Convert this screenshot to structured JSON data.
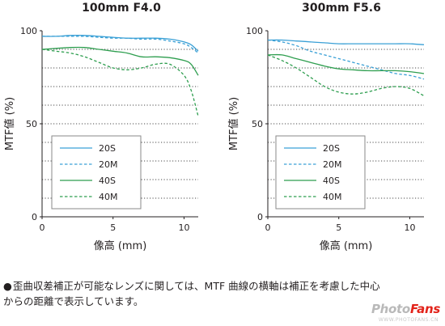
{
  "chart_data": [
    {
      "type": "line",
      "title": "100mm F4.0",
      "xlabel": "像高 (mm)",
      "ylabel": "MTF値 (%)",
      "xlim": [
        0,
        11
      ],
      "ylim": [
        0,
        100
      ],
      "xticks": [
        0,
        5,
        10
      ],
      "yticks": [
        0,
        50,
        100
      ],
      "grid": "horizontal dotted every 10%",
      "legend_position": "lower-left",
      "series": [
        {
          "name": "20S",
          "color": "#3aa0d6",
          "dash": "solid",
          "x": [
            0,
            1,
            2,
            3,
            4,
            5,
            6,
            7,
            8,
            9,
            10,
            10.5,
            11
          ],
          "y": [
            97,
            97,
            97.5,
            97.5,
            97,
            96.5,
            96,
            96,
            96,
            95.5,
            94,
            92.5,
            89
          ]
        },
        {
          "name": "20M",
          "color": "#3aa0d6",
          "dash": "dashed",
          "x": [
            0,
            1,
            2,
            3,
            4,
            5,
            6,
            7,
            8,
            9,
            10,
            10.5,
            11
          ],
          "y": [
            97,
            97,
            97,
            97,
            96.5,
            96,
            96,
            95.5,
            95.5,
            94.5,
            93,
            91,
            88
          ]
        },
        {
          "name": "40S",
          "color": "#2e9e4f",
          "dash": "solid",
          "x": [
            0,
            1,
            2,
            3,
            4,
            5,
            6,
            7,
            8,
            9,
            10,
            10.5,
            11
          ],
          "y": [
            90,
            90.5,
            91,
            91,
            90,
            89,
            88,
            86,
            86,
            85.5,
            84,
            82,
            76
          ]
        },
        {
          "name": "40M",
          "color": "#2e9e4f",
          "dash": "dashed",
          "x": [
            0,
            1,
            2,
            3,
            4,
            5,
            6,
            7,
            8,
            9,
            10,
            10.5,
            11
          ],
          "y": [
            90,
            89,
            88,
            86,
            83,
            80,
            79,
            80,
            82,
            82,
            76,
            68,
            54
          ]
        }
      ]
    },
    {
      "type": "line",
      "title": "300mm F5.6",
      "xlabel": "像高 (mm)",
      "ylabel": "MTF値 (%)",
      "xlim": [
        0,
        11
      ],
      "ylim": [
        0,
        100
      ],
      "xticks": [
        0,
        5,
        10
      ],
      "yticks": [
        0,
        50,
        100
      ],
      "grid": "horizontal dotted every 10%",
      "legend_position": "lower-left",
      "series": [
        {
          "name": "20S",
          "color": "#3aa0d6",
          "dash": "solid",
          "x": [
            0,
            1,
            2,
            3,
            4,
            5,
            6,
            7,
            8,
            9,
            10,
            11
          ],
          "y": [
            95,
            95,
            94.5,
            94,
            93.5,
            93,
            93,
            93,
            93,
            93,
            93,
            92.5
          ]
        },
        {
          "name": "20M",
          "color": "#3aa0d6",
          "dash": "dashed",
          "x": [
            0,
            1,
            2,
            3,
            4,
            5,
            6,
            7,
            8,
            9,
            10,
            11
          ],
          "y": [
            95,
            94,
            92,
            89,
            87,
            85,
            83,
            81,
            79,
            77,
            76,
            74
          ]
        },
        {
          "name": "40S",
          "color": "#2e9e4f",
          "dash": "solid",
          "x": [
            0,
            1,
            2,
            3,
            4,
            5,
            6,
            7,
            8,
            9,
            10,
            11
          ],
          "y": [
            87,
            87,
            85,
            83,
            81,
            79.5,
            79,
            78.5,
            78.5,
            78.5,
            78,
            77
          ]
        },
        {
          "name": "40M",
          "color": "#2e9e4f",
          "dash": "dashed",
          "x": [
            0,
            1,
            2,
            3,
            4,
            5,
            6,
            7,
            8,
            9,
            10,
            11
          ],
          "y": [
            87,
            84,
            80,
            75,
            70,
            67,
            66,
            67,
            69,
            70,
            69,
            65
          ]
        }
      ]
    }
  ],
  "footnote": {
    "bullet": "●",
    "text": "歪曲収差補正が可能なレンズに関しては、MTF 曲線の横軸は補正を考慮した中心からの距離で表示しています。"
  },
  "watermark": {
    "part1": "Photo",
    "part2": "Fans",
    "url": "WWW.PHOTOFANS.CN"
  }
}
